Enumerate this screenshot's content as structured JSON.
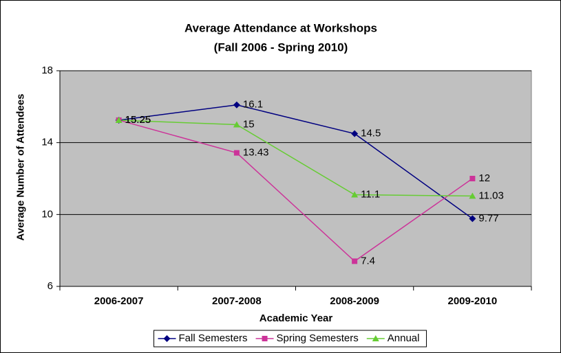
{
  "chart_data": {
    "type": "line",
    "title": "Average Attendance at Workshops",
    "subtitle": "(Fall 2006 - Spring 2010)",
    "xlabel": "Academic Year",
    "ylabel": "Average Number of Attendees",
    "categories": [
      "2006-2007",
      "2007-2008",
      "2008-2009",
      "2009-2010"
    ],
    "series": [
      {
        "name": "Fall Semesters",
        "color": "#000080",
        "marker": "diamond",
        "values": [
          15.25,
          16.1,
          14.5,
          9.77
        ]
      },
      {
        "name": "Spring Semesters",
        "color": "#cc3399",
        "marker": "square",
        "values": [
          15.25,
          13.43,
          7.4,
          12
        ]
      },
      {
        "name": "Annual",
        "color": "#66cc33",
        "marker": "triangle",
        "values": [
          15.25,
          15,
          11.1,
          11.03
        ]
      }
    ],
    "ylim": [
      6,
      18
    ],
    "yticks": [
      6,
      10,
      14,
      18
    ],
    "grid": true,
    "legend": "bottom",
    "data_labels": true
  }
}
